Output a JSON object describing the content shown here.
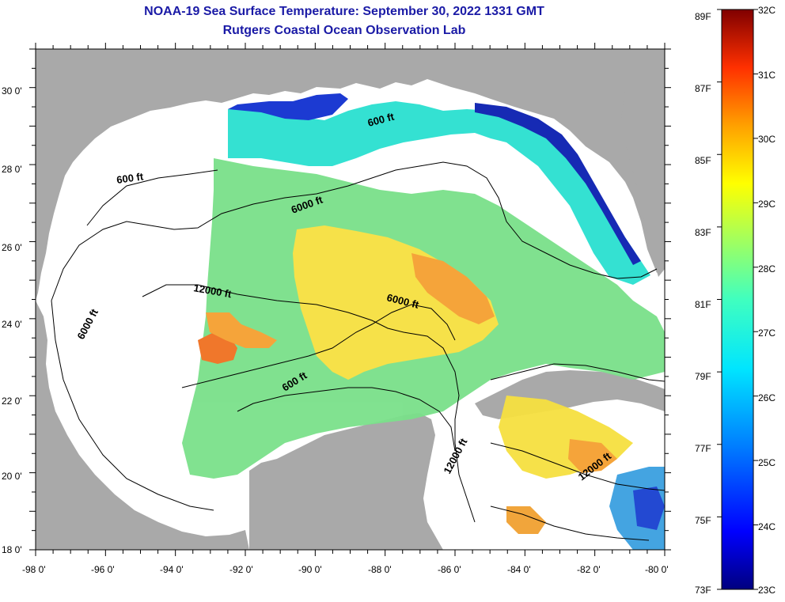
{
  "title": {
    "line1": "NOAA-19 Sea Surface Temperature:  September 30, 2022 1331 GMT",
    "line2": "Rutgers Coastal Ocean Observation Lab"
  },
  "map": {
    "lat_labels": [
      "30 0'",
      "28 0'",
      "26 0'",
      "24 0'",
      "22 0'",
      "20 0'",
      "18 0'"
    ],
    "lon_labels": [
      "-98 0'",
      "-96 0'",
      "-94 0'",
      "-92 0'",
      "-90 0'",
      "-88 0'",
      "-86 0'",
      "-84 0'",
      "-82 0'",
      "-80 0'"
    ],
    "contour_labels": [
      "600 ft",
      "6000 ft",
      "12000 ft",
      "6000 ft",
      "600 ft",
      "6000 ft",
      "600 ft",
      "12000 ft",
      "12000 ft"
    ],
    "land_color": "#a9a9a9",
    "nodata_color": "#ffffff"
  },
  "colorbar": {
    "f_labels": [
      "89F",
      "87F",
      "85F",
      "83F",
      "81F",
      "79F",
      "77F",
      "75F",
      "73F"
    ],
    "c_labels": [
      "32C",
      "31C",
      "30C",
      "29C",
      "28C",
      "27C",
      "26C",
      "25C",
      "24C",
      "23C"
    ],
    "colors": [
      "#00007f",
      "#0000ff",
      "#0080ff",
      "#00e5ff",
      "#40ffbf",
      "#a0ff60",
      "#ffff00",
      "#ffa000",
      "#ff4000",
      "#cc0000",
      "#800000"
    ]
  }
}
